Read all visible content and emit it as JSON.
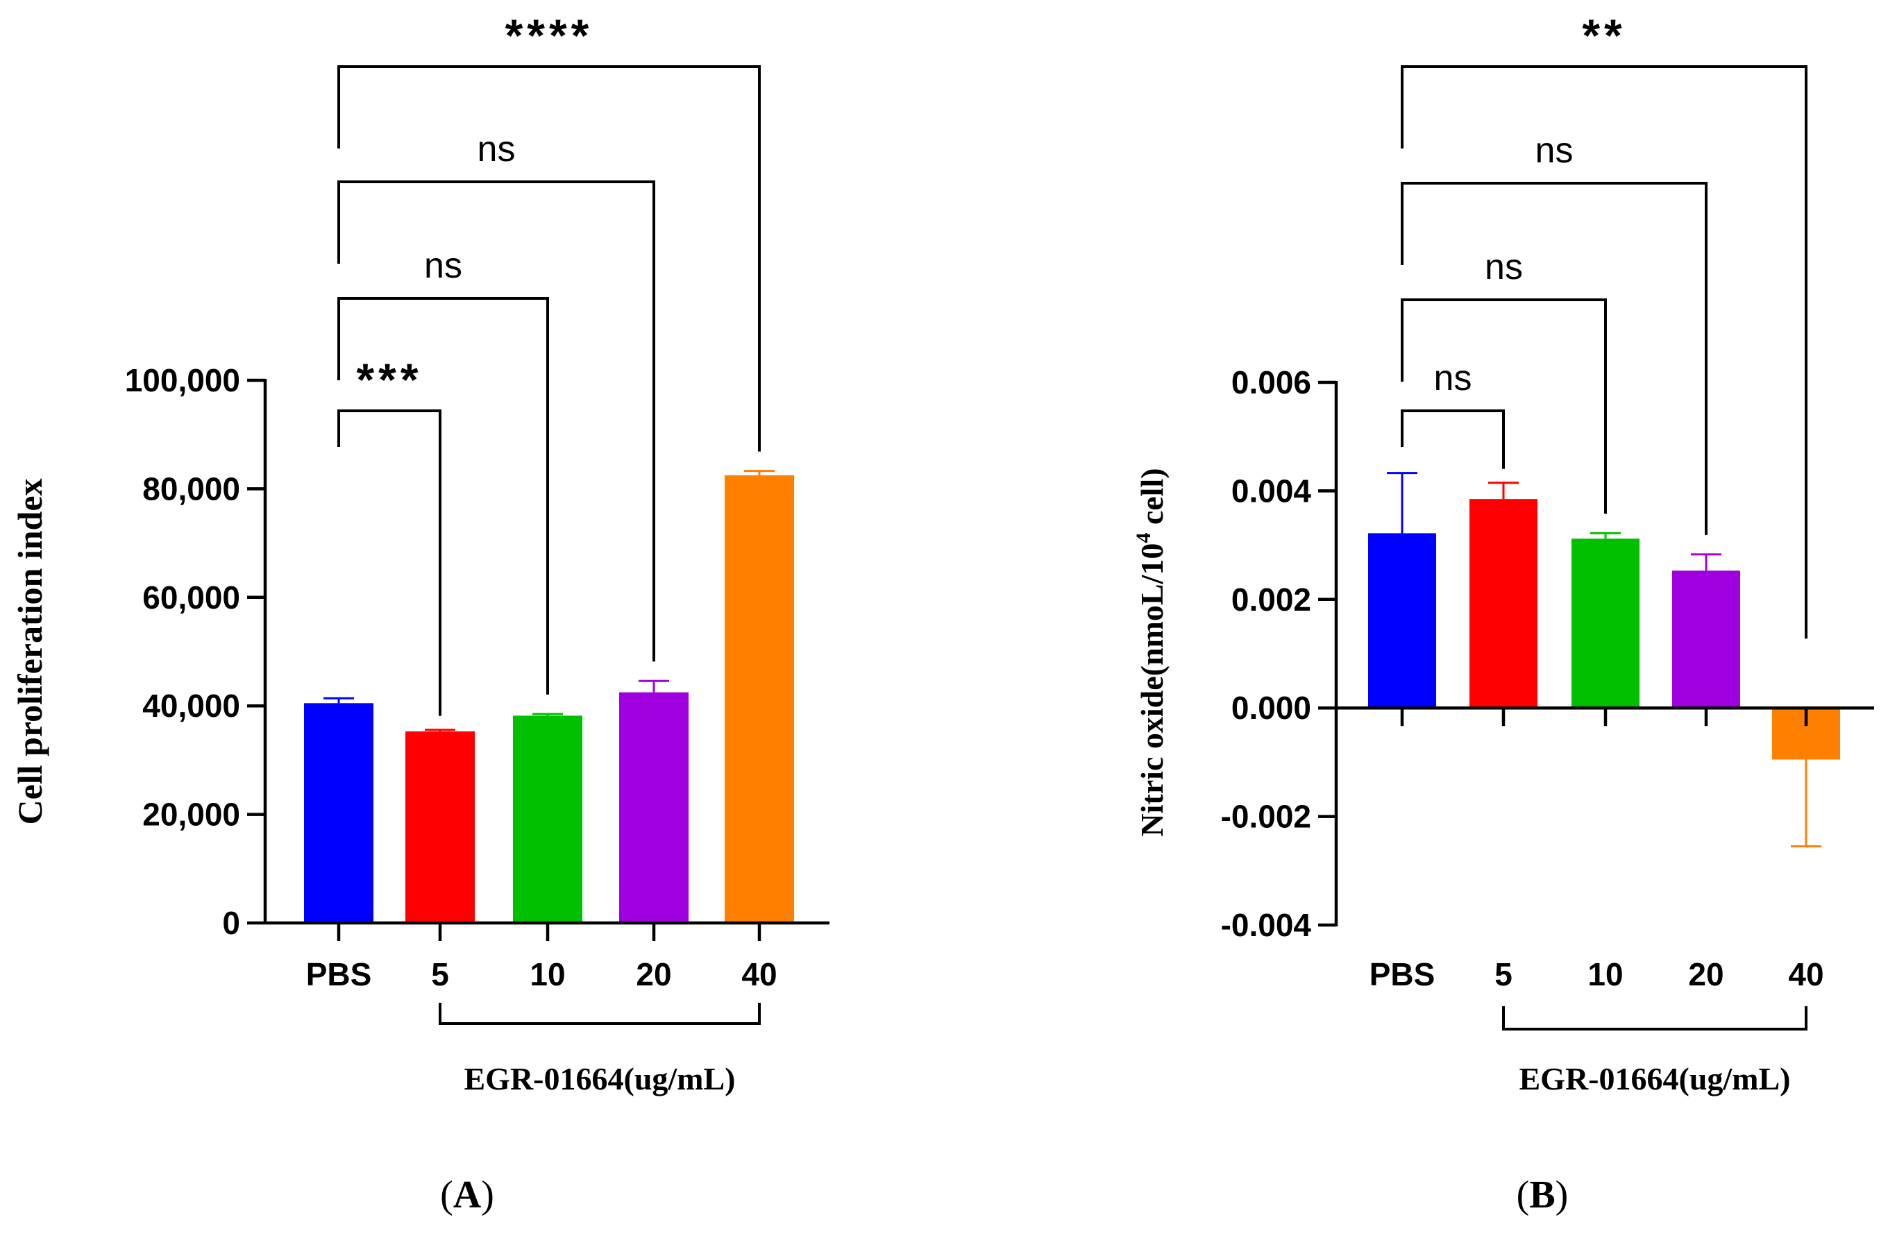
{
  "chart_data": [
    {
      "panel": "A",
      "type": "bar",
      "categories": [
        "PBS",
        "5",
        "10",
        "20",
        "40"
      ],
      "values": [
        40500,
        35300,
        38200,
        42500,
        82500
      ],
      "errors": [
        900,
        300,
        300,
        2100,
        800
      ],
      "colors": [
        "#0000ff",
        "#ff0000",
        "#00c000",
        "#a000e0",
        "#ff8000"
      ],
      "ylabel": "Cell proliferation index",
      "xlabel": "EGR-01664(ug/mL)",
      "ylim": [
        0,
        100000
      ],
      "yticks": [
        0,
        20000,
        40000,
        60000,
        80000,
        100000
      ],
      "ytick_labels": [
        "0",
        "20,000",
        "40,000",
        "60,000",
        "80,000",
        "100,000"
      ],
      "panel_label": "A",
      "comparisons": [
        {
          "from": 0,
          "to": 1,
          "label": "***"
        },
        {
          "from": 0,
          "to": 2,
          "label": "ns"
        },
        {
          "from": 0,
          "to": 3,
          "label": "ns"
        },
        {
          "from": 0,
          "to": 4,
          "label": "****"
        }
      ]
    },
    {
      "panel": "B",
      "type": "bar",
      "categories": [
        "PBS",
        "5",
        "10",
        "20",
        "40"
      ],
      "values": [
        0.00322,
        0.00385,
        0.00312,
        0.00253,
        -0.00095
      ],
      "errors": [
        0.00111,
        0.0003,
        0.0001,
        0.0003,
        0.0016
      ],
      "colors": [
        "#0000ff",
        "#ff0000",
        "#00c000",
        "#a000e0",
        "#ff8000"
      ],
      "ylabel_main": "Nitric oxide(nmoL/10",
      "ylabel_sup": "4",
      "ylabel_tail": " cell)",
      "xlabel": "EGR-01664(ug/mL)",
      "ylim": [
        -0.004,
        0.006
      ],
      "yticks": [
        -0.004,
        -0.002,
        0,
        0.002,
        0.004,
        0.006
      ],
      "ytick_labels": [
        "-0.004",
        "-0.002",
        "0.000",
        "0.002",
        "0.004",
        "0.006"
      ],
      "panel_label": "B",
      "comparisons": [
        {
          "from": 0,
          "to": 1,
          "label": "ns"
        },
        {
          "from": 0,
          "to": 2,
          "label": "ns"
        },
        {
          "from": 0,
          "to": 3,
          "label": "ns"
        },
        {
          "from": 0,
          "to": 4,
          "label": "**"
        }
      ]
    }
  ]
}
